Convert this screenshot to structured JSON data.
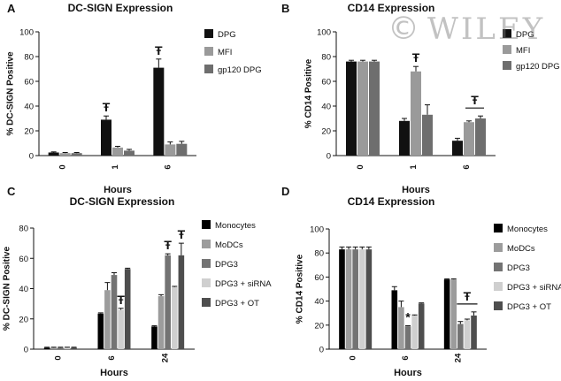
{
  "figure": {
    "watermark_symbol": "©",
    "watermark_text": "WILEY"
  },
  "chart_data": [
    {
      "panel": "A",
      "type": "bar",
      "title": "DC-SIGN Expression",
      "xlabel": "Hours",
      "ylabel": "% DC-SIGN Positive",
      "categories": [
        "0",
        "1",
        "6"
      ],
      "category_label_rotation": "vertical",
      "ylim": [
        0,
        100
      ],
      "yticks": [
        0,
        20,
        40,
        60,
        80,
        100
      ],
      "grid": false,
      "legend_position": "right",
      "series": [
        {
          "name": "DPG",
          "color": "#111111",
          "values": [
            2.5,
            29,
            71
          ],
          "errors": [
            0.5,
            3,
            7
          ]
        },
        {
          "name": "MFI",
          "color": "#9a9a9a",
          "values": [
            2,
            6.5,
            9
          ],
          "errors": [
            0.5,
            1,
            2
          ]
        },
        {
          "name": "gp120 DPG",
          "color": "#6e6e6e",
          "values": [
            2,
            4,
            9.5
          ],
          "errors": [
            0.5,
            1,
            2
          ]
        }
      ],
      "annotations": [
        {
          "symbol": "Ŧ",
          "category": 1,
          "series": 0
        },
        {
          "symbol": "Ŧ",
          "category": 2,
          "series": 0
        }
      ]
    },
    {
      "panel": "B",
      "type": "bar",
      "title": "CD14 Expression",
      "xlabel": "Hours",
      "ylabel": "% CD14 Positive",
      "categories": [
        "0",
        "1",
        "6"
      ],
      "category_label_rotation": "vertical",
      "ylim": [
        0,
        100
      ],
      "yticks": [
        0,
        20,
        40,
        60,
        80,
        100
      ],
      "grid": false,
      "legend_position": "right",
      "series": [
        {
          "name": "DPG",
          "color": "#111111",
          "values": [
            76,
            28,
            12
          ],
          "errors": [
            1,
            2,
            2
          ]
        },
        {
          "name": "MFI",
          "color": "#9a9a9a",
          "values": [
            76,
            68,
            27
          ],
          "errors": [
            1,
            4,
            1
          ]
        },
        {
          "name": "gp120 DPG",
          "color": "#6e6e6e",
          "values": [
            76,
            33,
            30
          ],
          "errors": [
            1,
            8,
            2
          ]
        }
      ],
      "annotations": [
        {
          "symbol": "Ŧ",
          "category": 1,
          "series": 1
        },
        {
          "symbol": "Ŧ",
          "category": 2,
          "series": 1,
          "bracket_to_series": 2
        }
      ]
    },
    {
      "panel": "C",
      "type": "bar",
      "title": "DC-SIGN Expression",
      "xlabel": "Hours",
      "ylabel": "% DC-SIGN Positive",
      "categories": [
        "0",
        "6",
        "24"
      ],
      "category_label_rotation": "vertical",
      "ylim": [
        0,
        80
      ],
      "yticks": [
        0,
        20,
        40,
        60,
        80
      ],
      "grid": false,
      "legend_position": "right",
      "series": [
        {
          "name": "Monocytes",
          "color": "#000000",
          "values": [
            1,
            23.5,
            15
          ],
          "errors": [
            0.3,
            0.5,
            0.5
          ]
        },
        {
          "name": "MoDCs",
          "color": "#9c9c9c",
          "values": [
            1,
            39,
            35
          ],
          "errors": [
            0.3,
            5,
            1
          ]
        },
        {
          "name": "DPG3",
          "color": "#737373",
          "values": [
            1,
            49,
            62
          ],
          "errors": [
            0.3,
            1.5,
            1
          ]
        },
        {
          "name": "DPG3 + siRNA",
          "color": "#cfcfcf",
          "values": [
            1,
            26,
            41
          ],
          "errors": [
            0.3,
            1,
            0.5
          ]
        },
        {
          "name": "DPG3 + OT",
          "color": "#4e4e4e",
          "values": [
            1,
            53,
            62
          ],
          "errors": [
            0.3,
            0.5,
            8
          ]
        }
      ],
      "annotations": [
        {
          "symbol": "Ŧ",
          "category": 1,
          "series": 3
        },
        {
          "symbol": "Ŧ",
          "category": 2,
          "series": 2
        },
        {
          "symbol": "Ŧ",
          "category": 2,
          "series": 4
        }
      ]
    },
    {
      "panel": "D",
      "type": "bar",
      "title": "CD14 Expression",
      "xlabel": "Hours",
      "ylabel": "% CD14 Positive",
      "categories": [
        "0",
        "6",
        "24"
      ],
      "category_label_rotation": "vertical",
      "ylim": [
        0,
        100
      ],
      "yticks": [
        0,
        20,
        40,
        60,
        80,
        100
      ],
      "grid": false,
      "legend_position": "right",
      "series": [
        {
          "name": "Monocytes",
          "color": "#000000",
          "values": [
            83,
            49,
            58
          ],
          "errors": [
            2,
            3,
            0.5
          ]
        },
        {
          "name": "MoDCs",
          "color": "#9c9c9c",
          "values": [
            83,
            35,
            58
          ],
          "errors": [
            2,
            5,
            0.5
          ]
        },
        {
          "name": "DPG3",
          "color": "#737373",
          "values": [
            83,
            19,
            21
          ],
          "errors": [
            2,
            0.5,
            2
          ]
        },
        {
          "name": "DPG3 + siRNA",
          "color": "#cfcfcf",
          "values": [
            83,
            28,
            24
          ],
          "errors": [
            2,
            0.5,
            1
          ]
        },
        {
          "name": "DPG3 + OT",
          "color": "#4e4e4e",
          "values": [
            83,
            38,
            28
          ],
          "errors": [
            2,
            0.5,
            3
          ]
        }
      ],
      "annotations": [
        {
          "symbol": "*",
          "category": 1,
          "series": 2
        },
        {
          "symbol": "Ŧ",
          "category": 2,
          "series": 2,
          "bracket_to_series": 4
        }
      ]
    }
  ]
}
